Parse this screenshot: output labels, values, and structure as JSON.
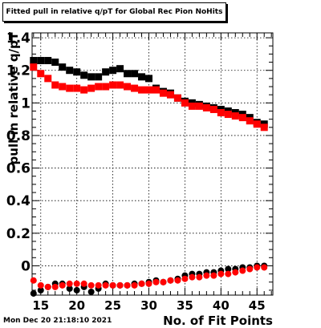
{
  "title": "Fitted pull in relative q/pT  for Global Rec Pion NoHits",
  "timestamp": "Mon Dec 20 21:18:10 2021",
  "chart_data": {
    "type": "scatter",
    "title": "Fitted pull in relative q/pT  for Global Rec Pion NoHits",
    "xlabel": "No. of Fit Points",
    "ylabel": "pull in relative q/pT",
    "xlim": [
      13.8,
      47.2
    ],
    "ylim": [
      -0.18,
      1.43
    ],
    "x_ticks": [
      15,
      20,
      25,
      30,
      35,
      40,
      45
    ],
    "y_ticks": [
      0,
      0.2,
      0.4,
      0.6,
      0.8,
      1,
      1.2,
      1.4
    ],
    "x_tick_labels": [
      "15",
      "20",
      "25",
      "30",
      "35",
      "40",
      "45"
    ],
    "y_tick_labels": [
      "0",
      "0.2",
      "0.4",
      "0.6",
      "0.8",
      "1",
      "1.2",
      "1.4"
    ],
    "grid": true,
    "series": [
      {
        "marker": "square",
        "color": "#000000",
        "x": [
          14,
          15,
          16,
          17,
          18,
          19,
          20,
          21,
          22,
          23,
          24,
          25,
          26,
          27,
          28,
          29,
          30,
          31,
          32,
          33,
          34,
          35,
          36,
          37,
          38,
          39,
          40,
          41,
          42,
          43,
          44,
          45,
          46
        ],
        "values": [
          1.26,
          1.26,
          1.26,
          1.25,
          1.22,
          1.2,
          1.19,
          1.17,
          1.16,
          1.16,
          1.19,
          1.2,
          1.21,
          1.18,
          1.18,
          1.16,
          1.15,
          1.09,
          1.07,
          1.06,
          1.03,
          1.01,
          1.0,
          0.99,
          0.98,
          0.97,
          0.96,
          0.95,
          0.94,
          0.93,
          0.91,
          0.88,
          0.87
        ]
      },
      {
        "marker": "square",
        "color": "#ff0000",
        "x": [
          14,
          15,
          16,
          17,
          18,
          19,
          20,
          21,
          22,
          23,
          24,
          25,
          26,
          27,
          28,
          29,
          30,
          31,
          32,
          33,
          34,
          35,
          36,
          37,
          38,
          39,
          40,
          41,
          42,
          43,
          44,
          45,
          46
        ],
        "values": [
          1.22,
          1.18,
          1.15,
          1.11,
          1.1,
          1.09,
          1.09,
          1.08,
          1.09,
          1.1,
          1.1,
          1.11,
          1.11,
          1.1,
          1.09,
          1.08,
          1.08,
          1.08,
          1.06,
          1.05,
          1.03,
          1.0,
          0.98,
          0.98,
          0.97,
          0.96,
          0.94,
          0.93,
          0.92,
          0.91,
          0.89,
          0.87,
          0.85
        ]
      },
      {
        "marker": "circle",
        "color": "#000000",
        "x": [
          14,
          15,
          16,
          17,
          18,
          19,
          20,
          21,
          22,
          23,
          24,
          25,
          26,
          27,
          28,
          29,
          30,
          31,
          32,
          33,
          34,
          35,
          36,
          37,
          38,
          39,
          40,
          41,
          42,
          43,
          44,
          45,
          46
        ],
        "values": [
          -0.17,
          -0.15,
          -0.13,
          -0.11,
          -0.11,
          -0.14,
          -0.15,
          -0.13,
          -0.16,
          -0.14,
          -0.11,
          -0.12,
          -0.12,
          -0.12,
          -0.11,
          -0.11,
          -0.1,
          -0.09,
          -0.1,
          -0.09,
          -0.08,
          -0.06,
          -0.05,
          -0.05,
          -0.04,
          -0.04,
          -0.03,
          -0.02,
          -0.02,
          -0.01,
          -0.01,
          0.0,
          0.0
        ]
      },
      {
        "marker": "circle",
        "color": "#ff0000",
        "x": [
          14,
          15,
          16,
          17,
          18,
          19,
          20,
          21,
          22,
          23,
          24,
          25,
          26,
          27,
          28,
          29,
          30,
          31,
          32,
          33,
          34,
          35,
          36,
          37,
          38,
          39,
          40,
          41,
          42,
          43,
          44,
          45,
          46
        ],
        "values": [
          -0.09,
          -0.12,
          -0.13,
          -0.13,
          -0.12,
          -0.11,
          -0.11,
          -0.11,
          -0.12,
          -0.12,
          -0.12,
          -0.12,
          -0.12,
          -0.12,
          -0.12,
          -0.11,
          -0.11,
          -0.1,
          -0.1,
          -0.09,
          -0.09,
          -0.08,
          -0.07,
          -0.07,
          -0.06,
          -0.06,
          -0.05,
          -0.05,
          -0.04,
          -0.03,
          -0.02,
          -0.01,
          -0.01
        ]
      }
    ]
  }
}
